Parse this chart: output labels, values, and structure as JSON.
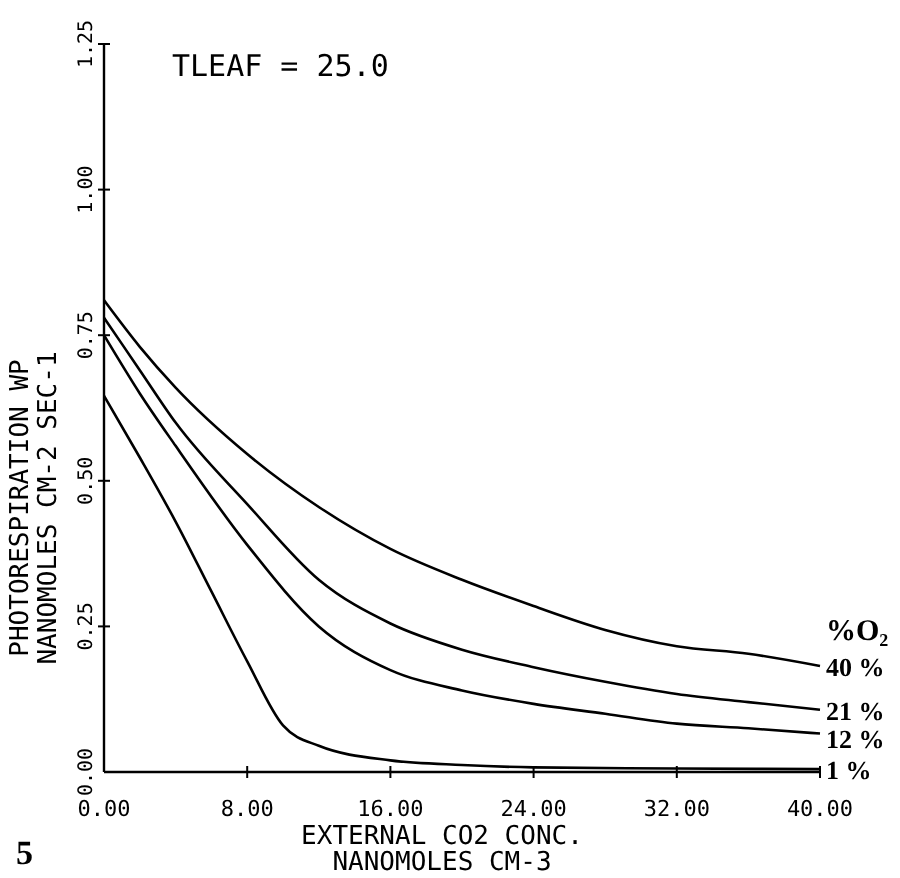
{
  "chart_data": {
    "type": "line",
    "title": "TLEAF = 25.0",
    "xlabel": "EXTERNAL CO2 CONC.\nNANOMOLES CM-3",
    "ylabel": "PHOTORESPIRATION WP\nNANOMOLES CM-2 SEC-1",
    "legend_title": "%O₂",
    "annotations": [
      "5"
    ],
    "x": [
      0,
      2,
      4,
      8,
      12,
      16,
      20,
      24,
      28,
      32,
      36,
      40
    ],
    "series": [
      {
        "name": "40 %",
        "color": "#000000",
        "values": [
          0.81,
          0.73,
          0.66,
          0.546,
          0.455,
          0.383,
          0.33,
          0.285,
          0.244,
          0.216,
          0.203,
          0.182
        ]
      },
      {
        "name": "21 %",
        "color": "#000000",
        "values": [
          0.78,
          0.69,
          0.6,
          0.46,
          0.33,
          0.255,
          0.21,
          0.18,
          0.155,
          0.134,
          0.12,
          0.107
        ]
      },
      {
        "name": "12 %",
        "color": "#000000",
        "values": [
          0.75,
          0.65,
          0.56,
          0.39,
          0.25,
          0.175,
          0.14,
          0.117,
          0.1,
          0.083,
          0.075,
          0.066
        ]
      },
      {
        "name": "1 %",
        "color": "#000000",
        "x": [
          0,
          2,
          4,
          6,
          8,
          10,
          12,
          16,
          20,
          24,
          32,
          40
        ],
        "values": [
          0.646,
          0.54,
          0.43,
          0.31,
          0.19,
          0.08,
          0.045,
          0.02,
          0.012,
          0.008,
          0.006,
          0.005
        ]
      }
    ],
    "xlim": [
      0,
      40
    ],
    "xticks": [
      {
        "value": 0,
        "label": "0.00"
      },
      {
        "value": 8,
        "label": "8.00"
      },
      {
        "value": 16,
        "label": "16.00"
      },
      {
        "value": 24,
        "label": "24.00"
      },
      {
        "value": 32,
        "label": "32.00"
      },
      {
        "value": 40,
        "label": "40.00"
      }
    ],
    "ylim": [
      0,
      1.25
    ],
    "yticks": [
      {
        "value": 0,
        "label": "0.00"
      },
      {
        "value": 0.25,
        "label": "0.25"
      },
      {
        "value": 0.5,
        "label": "0.50"
      },
      {
        "value": 0.75,
        "label": "0.75"
      },
      {
        "value": 1,
        "label": "1.00"
      },
      {
        "value": 1.25,
        "label": "1.25"
      }
    ],
    "grid": false,
    "legend": "right",
    "marker": "none",
    "line_style": "solid"
  }
}
